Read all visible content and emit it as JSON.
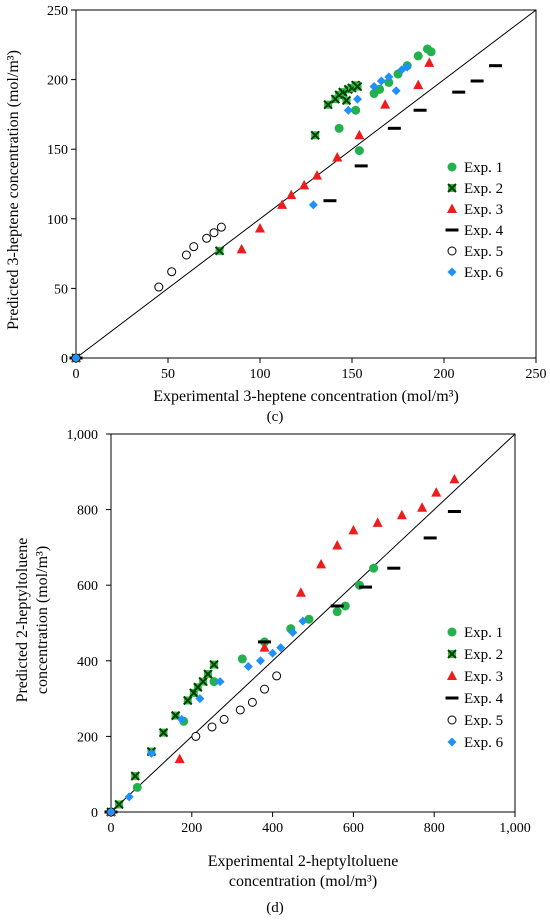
{
  "chart_data": [
    {
      "panel_label": "(c)",
      "type": "scatter",
      "xlabel": "Experimental 3-heptene concentration (mol/m³)",
      "ylabel": "Predicted 3-heptene concentration (mol/m³)",
      "xlim": [
        0,
        250
      ],
      "ylim": [
        0,
        250
      ],
      "x_ticks": [
        0,
        50,
        100,
        150,
        200,
        250
      ],
      "y_ticks": [
        0,
        50,
        100,
        150,
        200,
        250
      ],
      "x_tick_labels": [
        "0",
        "50",
        "100",
        "150",
        "200",
        "250"
      ],
      "y_tick_labels": [
        "0",
        "50",
        "100",
        "150",
        "200",
        "250"
      ],
      "parity_line": true,
      "legend_position": "right",
      "series": [
        {
          "name": "Exp. 1",
          "marker": "circle",
          "color": "#22b14c",
          "points": [
            [
              0,
              0
            ],
            [
              143,
              165
            ],
            [
              152,
              178
            ],
            [
              154,
              149
            ],
            [
              162,
              190
            ],
            [
              165,
              193
            ],
            [
              170,
              198
            ],
            [
              175,
              204
            ],
            [
              180,
              210
            ],
            [
              186,
              217
            ],
            [
              191,
              222
            ],
            [
              193,
              220
            ]
          ]
        },
        {
          "name": "Exp. 2",
          "marker": "xsquare",
          "color": "#1e6b1e",
          "points": [
            [
              0,
              0
            ],
            [
              78,
              77
            ],
            [
              130,
              160
            ],
            [
              137,
              182
            ],
            [
              141,
              186
            ],
            [
              143,
              189
            ],
            [
              145,
              191
            ],
            [
              147,
              185
            ],
            [
              148,
              193
            ],
            [
              150,
              194
            ],
            [
              152,
              196
            ],
            [
              153,
              195
            ]
          ]
        },
        {
          "name": "Exp. 3",
          "marker": "triangle",
          "color": "#ee1c1c",
          "points": [
            [
              0,
              0
            ],
            [
              90,
              78
            ],
            [
              100,
              93
            ],
            [
              112,
              110
            ],
            [
              117,
              117
            ],
            [
              124,
              124
            ],
            [
              131,
              131
            ],
            [
              142,
              144
            ],
            [
              154,
              160
            ],
            [
              168,
              182
            ],
            [
              186,
              196
            ],
            [
              192,
              212
            ]
          ]
        },
        {
          "name": "Exp. 4",
          "marker": "dash",
          "color": "#000000",
          "points": [
            [
              0,
              0
            ],
            [
              138,
              113
            ],
            [
              155,
              138
            ],
            [
              173,
              165
            ],
            [
              187,
              178
            ],
            [
              208,
              191
            ],
            [
              218,
              199
            ],
            [
              228,
              210
            ]
          ]
        },
        {
          "name": "Exp. 5",
          "marker": "ocircle",
          "color": "#000000",
          "points": [
            [
              0,
              0
            ],
            [
              45,
              51
            ],
            [
              52,
              62
            ],
            [
              60,
              74
            ],
            [
              64,
              80
            ],
            [
              71,
              86
            ],
            [
              75,
              90
            ],
            [
              79,
              94
            ]
          ]
        },
        {
          "name": "Exp. 6",
          "marker": "diamond",
          "color": "#1e90ff",
          "points": [
            [
              0,
              0
            ],
            [
              129,
              110
            ],
            [
              148,
              178
            ],
            [
              153,
              186
            ],
            [
              162,
              195
            ],
            [
              166,
              199
            ],
            [
              170,
              202
            ],
            [
              174,
              192
            ],
            [
              177,
              207
            ],
            [
              180,
              209
            ]
          ]
        }
      ]
    },
    {
      "panel_label": "(d)",
      "type": "scatter",
      "xlabel": "Experimental 2-heptyltoluene concentration (mol/m³)",
      "xlabel_lines": [
        "Experimental 2-heptyltoluene",
        "concentration (mol/m³)"
      ],
      "ylabel": "Predicted 2-heptyltoluene concentration (mol/m³)",
      "ylabel_lines": [
        "Predicted 2-heptyltoluene",
        "concentration (mol/m³)"
      ],
      "xlim": [
        0,
        1000
      ],
      "ylim": [
        0,
        1000
      ],
      "x_ticks": [
        0,
        200,
        400,
        600,
        800,
        1000
      ],
      "y_ticks": [
        0,
        200,
        400,
        600,
        800,
        1000
      ],
      "x_tick_labels": [
        "0",
        "200",
        "400",
        "600",
        "800",
        "1,000"
      ],
      "y_tick_labels": [
        "0",
        "200",
        "400",
        "600",
        "800",
        "1,000"
      ],
      "parity_line": true,
      "legend_position": "right",
      "series": [
        {
          "name": "Exp. 1",
          "marker": "circle",
          "color": "#22b14c",
          "points": [
            [
              0,
              0
            ],
            [
              65,
              65
            ],
            [
              180,
              240
            ],
            [
              255,
              345
            ],
            [
              325,
              405
            ],
            [
              380,
              450
            ],
            [
              445,
              485
            ],
            [
              490,
              510
            ],
            [
              560,
              530
            ],
            [
              580,
              545
            ],
            [
              615,
              600
            ],
            [
              650,
              645
            ]
          ]
        },
        {
          "name": "Exp. 2",
          "marker": "xsquare",
          "color": "#1e6b1e",
          "points": [
            [
              0,
              0
            ],
            [
              20,
              20
            ],
            [
              60,
              95
            ],
            [
              100,
              160
            ],
            [
              130,
              210
            ],
            [
              160,
              255
            ],
            [
              190,
              295
            ],
            [
              205,
              315
            ],
            [
              215,
              330
            ],
            [
              228,
              345
            ],
            [
              240,
              365
            ],
            [
              255,
              390
            ]
          ]
        },
        {
          "name": "Exp. 3",
          "marker": "triangle",
          "color": "#ee1c1c",
          "points": [
            [
              0,
              0
            ],
            [
              170,
              140
            ],
            [
              380,
              435
            ],
            [
              470,
              580
            ],
            [
              520,
              655
            ],
            [
              560,
              705
            ],
            [
              600,
              745
            ],
            [
              660,
              765
            ],
            [
              720,
              785
            ],
            [
              770,
              805
            ],
            [
              805,
              845
            ],
            [
              850,
              880
            ]
          ]
        },
        {
          "name": "Exp. 4",
          "marker": "dash",
          "color": "#000000",
          "points": [
            [
              0,
              0
            ],
            [
              380,
              450
            ],
            [
              560,
              545
            ],
            [
              630,
              595
            ],
            [
              700,
              645
            ],
            [
              790,
              725
            ],
            [
              850,
              795
            ]
          ]
        },
        {
          "name": "Exp. 5",
          "marker": "ocircle",
          "color": "#000000",
          "points": [
            [
              0,
              0
            ],
            [
              210,
              200
            ],
            [
              250,
              225
            ],
            [
              280,
              245
            ],
            [
              320,
              270
            ],
            [
              350,
              290
            ],
            [
              380,
              325
            ],
            [
              410,
              360
            ]
          ]
        },
        {
          "name": "Exp. 6",
          "marker": "diamond",
          "color": "#1e90ff",
          "points": [
            [
              0,
              0
            ],
            [
              45,
              40
            ],
            [
              100,
              155
            ],
            [
              175,
              245
            ],
            [
              220,
              300
            ],
            [
              270,
              345
            ],
            [
              340,
              385
            ],
            [
              370,
              400
            ],
            [
              400,
              420
            ],
            [
              420,
              435
            ],
            [
              450,
              475
            ],
            [
              475,
              505
            ]
          ]
        }
      ]
    }
  ]
}
